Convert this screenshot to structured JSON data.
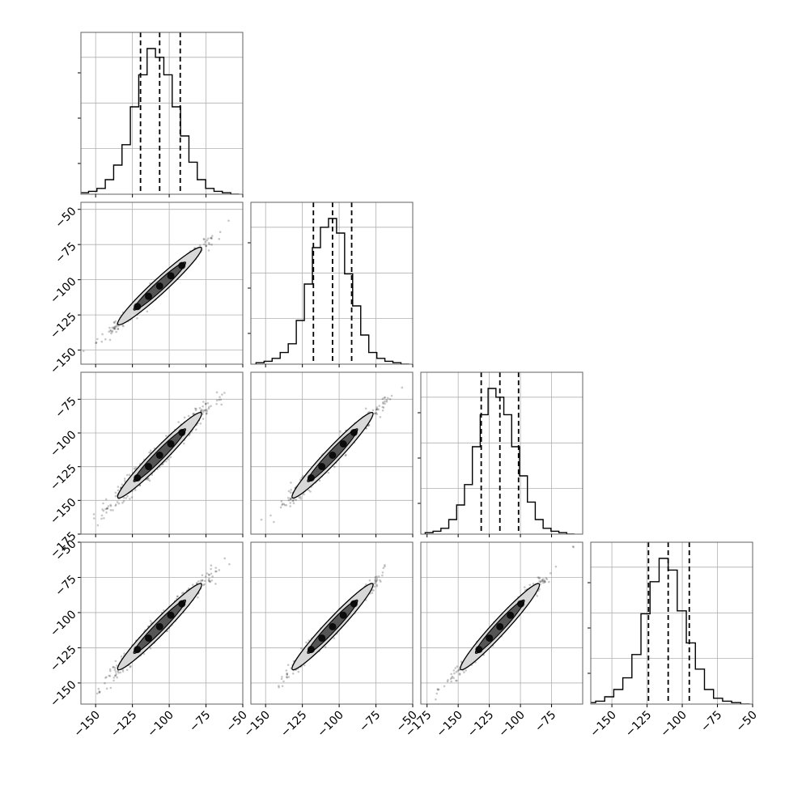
{
  "chart_data": {
    "type": "corner",
    "dimensions": 4,
    "histogram": {
      "stroke": "#000000",
      "quantiles_percent": [
        16,
        50,
        84
      ]
    },
    "scatter": {
      "color": "#000000",
      "contour_fill": "#000000",
      "grid": true
    },
    "parameters": [
      {
        "id": "p1",
        "xlim": [
          -160,
          -50
        ],
        "xticks": [
          -150,
          -125,
          -100,
          -75,
          -50
        ],
        "xtick_labels": [
          "−150",
          "−125",
          "−100",
          "−75",
          "−50"
        ],
        "hist_peak_relative": 1.0,
        "quantiles": [
          -119.5,
          -106.5,
          -92.5
        ],
        "hist_levels": [
          0.01,
          0.02,
          0.04,
          0.1,
          0.2,
          0.34,
          0.6,
          0.82,
          1.0,
          0.94,
          0.82,
          0.6,
          0.4,
          0.22,
          0.1,
          0.04,
          0.02,
          0.01,
          0.0
        ]
      },
      {
        "id": "p2",
        "xlim": [
          -160,
          -50
        ],
        "ylim": [
          -160,
          -45
        ],
        "xticks": [
          -150,
          -125,
          -100,
          -75,
          -50
        ],
        "xtick_labels": [
          "−150",
          "−125",
          "−100",
          "−75",
          "−50"
        ],
        "yticks": [
          -150,
          -125,
          -100,
          -75,
          -50
        ],
        "ytick_labels": [
          "−150",
          "−125",
          "−100",
          "−75",
          "−50"
        ],
        "quantiles": [
          -117.5,
          -104.5,
          -91.5
        ],
        "hist_levels": [
          0.01,
          0.02,
          0.04,
          0.08,
          0.14,
          0.3,
          0.55,
          0.8,
          0.94,
          1.0,
          0.9,
          0.62,
          0.4,
          0.2,
          0.08,
          0.04,
          0.02,
          0.01,
          0.0
        ],
        "corr_with": {
          "p1": 0.985
        }
      },
      {
        "id": "p3",
        "xlim": [
          -180,
          -50
        ],
        "ylim": [
          -175,
          -55
        ],
        "xticks": [
          -175,
          -150,
          -125,
          -100,
          -75
        ],
        "xtick_labels": [
          "−175",
          "−150",
          "−125",
          "−100",
          "−75"
        ],
        "yticks": [
          -175,
          -150,
          -125,
          -100,
          -75
        ],
        "ytick_labels": [
          "−175",
          "−150",
          "−125",
          "−100",
          "−75"
        ],
        "quantiles": [
          -131.5,
          -116.5,
          -101.5
        ],
        "hist_levels": [
          0.01,
          0.02,
          0.04,
          0.1,
          0.2,
          0.34,
          0.6,
          0.82,
          1.0,
          0.94,
          0.82,
          0.6,
          0.4,
          0.22,
          0.1,
          0.04,
          0.02,
          0.01,
          0.0
        ],
        "corr_with": {
          "p1": 0.975,
          "p2": 0.98
        }
      },
      {
        "id": "p4",
        "xlim": [
          -165,
          -50
        ],
        "ylim": [
          -165,
          -50
        ],
        "xticks": [
          -150,
          -125,
          -100,
          -75,
          -50
        ],
        "xtick_labels": [
          "−150",
          "−125",
          "−100",
          "−75",
          "−50"
        ],
        "yticks": [
          -150,
          -125,
          -100,
          -75,
          -50
        ],
        "ytick_labels": [
          "−150",
          "−125",
          "−100",
          "−75",
          "−50"
        ],
        "quantiles": [
          -124,
          -110,
          -95
        ],
        "hist_levels": [
          0.01,
          0.02,
          0.05,
          0.1,
          0.18,
          0.34,
          0.62,
          0.84,
          1.0,
          0.92,
          0.64,
          0.42,
          0.24,
          0.1,
          0.04,
          0.02,
          0.01,
          0.0
        ],
        "corr_with": {
          "p1": 0.98,
          "p2": 0.985,
          "p3": 0.985
        }
      }
    ]
  }
}
